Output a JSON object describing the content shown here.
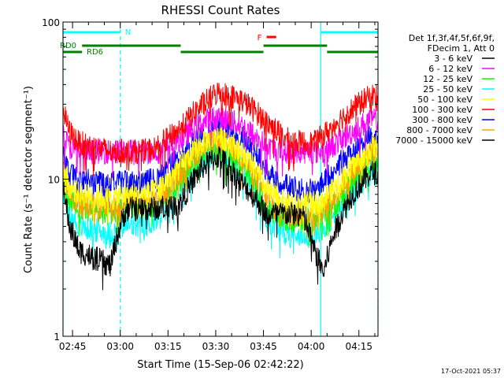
{
  "chart_data": {
    "type": "line",
    "title": "RHESSI Count Rates",
    "xlabel": "Start Time (15-Sep-06 02:42:22)",
    "ylabel": "Count Rate (s⁻¹ detector segment⁻¹)",
    "x_range": [
      "02:42",
      "04:21"
    ],
    "x_ticks": [
      {
        "label": "02:45",
        "min": 3
      },
      {
        "label": "03:00",
        "min": 18
      },
      {
        "label": "03:15",
        "min": 33
      },
      {
        "label": "03:30",
        "min": 48
      },
      {
        "label": "03:45",
        "min": 63
      },
      {
        "label": "04:00",
        "min": 78
      },
      {
        "label": "04:15",
        "min": 93
      }
    ],
    "y_scale": "log",
    "ylim": [
      1,
      100
    ],
    "y_ticks": [
      "1",
      "10",
      "100"
    ],
    "grid": false,
    "legend_title": [
      "Det 1f,3f,4f,5f,6f,9f,",
      "FDecim 1, Att 0"
    ],
    "legend_position": "right",
    "series": [
      {
        "name": "3 - 6 keV",
        "color": "#000000",
        "values": [
          8.5,
          5.0,
          3.5,
          2.8,
          6.5,
          6.5,
          6.5,
          7.0,
          12.0,
          14.0,
          9.5,
          6.0,
          6.0,
          6.0,
          3.5,
          2.5,
          5.0,
          8.0,
          11.0
        ]
      },
      {
        "name": "6 - 12 keV",
        "color": "#ff00ff",
        "values": [
          19,
          16,
          15,
          15,
          15,
          15,
          15,
          18,
          23,
          25,
          22,
          16,
          15,
          15,
          15,
          15,
          17,
          20,
          24
        ]
      },
      {
        "name": "12 - 25 keV",
        "color": "#00ff00",
        "values": [
          10,
          7.5,
          6.5,
          6.0,
          6.5,
          6.5,
          7.0,
          10.0,
          14.0,
          15.5,
          12.0,
          6.5,
          5.5,
          5.5,
          5.5,
          6.0,
          7.0,
          9.5,
          13.0
        ]
      },
      {
        "name": "25 - 50 keV",
        "color": "#00ffff",
        "values": [
          8.0,
          6.0,
          5.0,
          4.5,
          5.0,
          5.0,
          5.5,
          8.5,
          13.0,
          15.5,
          12.0,
          5.5,
          4.5,
          4.5,
          4.5,
          5.0,
          6.0,
          8.0,
          11.0
        ]
      },
      {
        "name": "50 - 100 keV",
        "color": "#ffff00",
        "values": [
          12,
          9.0,
          8.0,
          7.5,
          8.0,
          8.0,
          8.5,
          12,
          17,
          19,
          15,
          8.5,
          7.0,
          7.0,
          7.0,
          7.5,
          9.0,
          12,
          16
        ]
      },
      {
        "name": "100 - 300 keV",
        "color": "#ff0000",
        "values": [
          27,
          20,
          17,
          15,
          15,
          15,
          16,
          21,
          30,
          36,
          32,
          23,
          18,
          17,
          17,
          19,
          23,
          28,
          34
        ]
      },
      {
        "name": "300 - 800 keV",
        "color": "#0000ff",
        "values": [
          14,
          11,
          10,
          9.5,
          9.5,
          9.5,
          10,
          14,
          19,
          22,
          19,
          11,
          9.0,
          8.5,
          8.5,
          9.5,
          12,
          15,
          19
        ]
      },
      {
        "name": "800 - 7000 keV",
        "color": "#ffa000",
        "values": [
          11,
          8.0,
          7.0,
          6.5,
          7.0,
          7.0,
          7.5,
          11,
          16,
          18,
          14,
          7.5,
          6.0,
          6.0,
          6.0,
          6.5,
          8.0,
          11,
          15
        ]
      },
      {
        "name": "7000 - 15000 keV",
        "color": "#000000",
        "values": []
      }
    ],
    "x_minutes": [
      0,
      2,
      5,
      15,
      20,
      25,
      30,
      37,
      44,
      49,
      56,
      64,
      70,
      75,
      79,
      82,
      86,
      91,
      97
    ],
    "annotations": {
      "orbit_markers": [
        {
          "label": "N",
          "color": "#00ffff",
          "segments": [
            [
              "02:42",
              "03:00"
            ],
            [
              "04:03",
              "04:21"
            ]
          ]
        },
        {
          "label": "F",
          "color": "#ff0000",
          "segments": [
            [
              "03:46",
              "03:49"
            ]
          ]
        },
        {
          "label": "RD0",
          "color": "#008000",
          "segments": [
            [
              "02:42",
              "02:48"
            ],
            [
              "02:48",
              "03:19"
            ],
            [
              "03:19",
              "03:45"
            ],
            [
              "03:45",
              "04:05"
            ],
            [
              "04:05",
              "04:21"
            ]
          ]
        },
        {
          "label": "RD6",
          "color": "#008000",
          "segments": []
        }
      ],
      "vertical_lines": [
        {
          "time": "02:42",
          "style": "solid",
          "color": "#00ffff"
        },
        {
          "time": "03:00",
          "style": "dashed",
          "color": "#00ffff"
        },
        {
          "time": "04:03",
          "style": "solid",
          "color": "#00ffff"
        },
        {
          "time": "04:21",
          "style": "dashed",
          "color": "#00ffff"
        }
      ]
    },
    "footer_date": "17-Oct-2021 05:37"
  }
}
